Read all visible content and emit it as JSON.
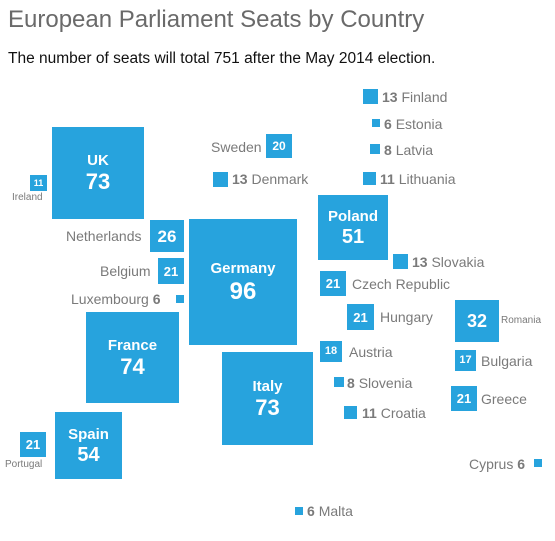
{
  "title": "European Parliament Seats by Country",
  "subtitle": "The number of seats will total 751 after the May 2014 election.",
  "colors": {
    "square": "#27a3dd",
    "label": "#7a7a7a",
    "title": "#6a6a6a"
  },
  "countries": {
    "germany": {
      "name": "Germany",
      "seats": "96"
    },
    "france": {
      "name": "France",
      "seats": "74"
    },
    "uk": {
      "name": "UK",
      "seats": "73"
    },
    "italy": {
      "name": "Italy",
      "seats": "73"
    },
    "spain": {
      "name": "Spain",
      "seats": "54"
    },
    "poland": {
      "name": "Poland",
      "seats": "51"
    },
    "romania": {
      "name": "Romania",
      "seats": "32"
    },
    "netherlands": {
      "name": "Netherlands",
      "seats": "26"
    },
    "belgium": {
      "name": "Belgium",
      "seats": "21"
    },
    "czech": {
      "name": "Czech Republic",
      "seats": "21"
    },
    "greece": {
      "name": "Greece",
      "seats": "21"
    },
    "hungary": {
      "name": "Hungary",
      "seats": "21"
    },
    "portugal": {
      "name": "Portugal",
      "seats": "21"
    },
    "sweden": {
      "name": "Sweden",
      "seats": "20"
    },
    "austria": {
      "name": "Austria",
      "seats": "18"
    },
    "bulgaria": {
      "name": "Bulgaria",
      "seats": "17"
    },
    "denmark": {
      "name": "Denmark",
      "seats": "13"
    },
    "finland": {
      "name": "Finland",
      "seats": "13"
    },
    "slovakia": {
      "name": "Slovakia",
      "seats": "13"
    },
    "ireland": {
      "name": "Ireland",
      "seats": "11"
    },
    "lithuania": {
      "name": "Lithuania",
      "seats": "11"
    },
    "croatia": {
      "name": "Croatia",
      "seats": "11"
    },
    "latvia": {
      "name": "Latvia",
      "seats": "8"
    },
    "slovenia": {
      "name": "Slovenia",
      "seats": "8"
    },
    "estonia": {
      "name": "Estonia",
      "seats": "6"
    },
    "luxembourg": {
      "name": "Luxembourg",
      "seats": "6"
    },
    "cyprus": {
      "name": "Cyprus",
      "seats": "6"
    },
    "malta": {
      "name": "Malta",
      "seats": "6"
    }
  }
}
